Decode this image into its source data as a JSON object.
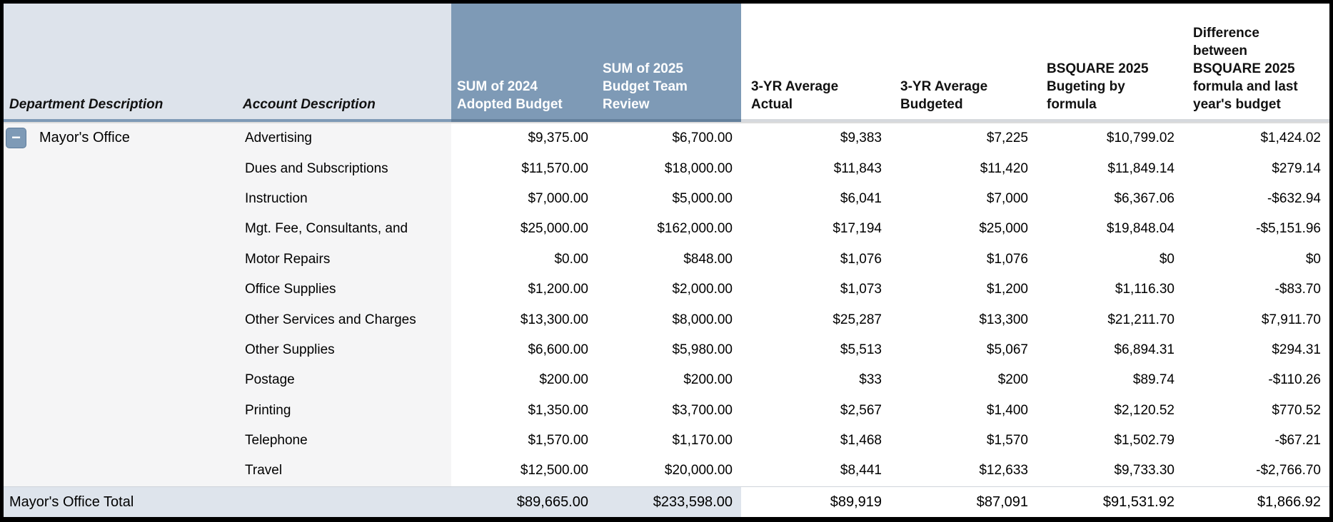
{
  "table": {
    "columns": [
      {
        "label": "Department Description"
      },
      {
        "label": "Account Description"
      },
      {
        "label": "SUM of 2024\nAdopted Budget"
      },
      {
        "label": "SUM of 2025\nBudget Team\nReview"
      },
      {
        "label": "3-YR Average\nActual"
      },
      {
        "label": "3-YR Average\nBudgeted"
      },
      {
        "label": "BSQUARE 2025\nBugeting by\nformula"
      },
      {
        "label": "Difference\nbetween\nBSQUARE 2025\nformula and last\nyear's budget"
      }
    ],
    "group": {
      "department": "Mayor's Office",
      "collapse_icon": "collapse-minus-icon",
      "collapse_glyph": "−"
    },
    "rows": [
      {
        "account": "Advertising",
        "sum_2024": "$9,375.00",
        "sum_2025": "$6,700.00",
        "avg_actual_3yr": "$9,383",
        "avg_budgeted_3yr": "$7,225",
        "bsquare_2025": "$10,799.02",
        "difference": "$1,424.02"
      },
      {
        "account": "Dues and Subscriptions",
        "sum_2024": "$11,570.00",
        "sum_2025": "$18,000.00",
        "avg_actual_3yr": "$11,843",
        "avg_budgeted_3yr": "$11,420",
        "bsquare_2025": "$11,849.14",
        "difference": "$279.14"
      },
      {
        "account": "Instruction",
        "sum_2024": "$7,000.00",
        "sum_2025": "$5,000.00",
        "avg_actual_3yr": "$6,041",
        "avg_budgeted_3yr": "$7,000",
        "bsquare_2025": "$6,367.06",
        "difference": "-$632.94"
      },
      {
        "account": "Mgt. Fee, Consultants, and",
        "sum_2024": "$25,000.00",
        "sum_2025": "$162,000.00",
        "avg_actual_3yr": "$17,194",
        "avg_budgeted_3yr": "$25,000",
        "bsquare_2025": "$19,848.04",
        "difference": "-$5,151.96"
      },
      {
        "account": "Motor Repairs",
        "sum_2024": "$0.00",
        "sum_2025": "$848.00",
        "avg_actual_3yr": "$1,076",
        "avg_budgeted_3yr": "$1,076",
        "bsquare_2025": "$0",
        "difference": "$0"
      },
      {
        "account": "Office Supplies",
        "sum_2024": "$1,200.00",
        "sum_2025": "$2,000.00",
        "avg_actual_3yr": "$1,073",
        "avg_budgeted_3yr": "$1,200",
        "bsquare_2025": "$1,116.30",
        "difference": "-$83.70"
      },
      {
        "account": "Other Services and Charges",
        "sum_2024": "$13,300.00",
        "sum_2025": "$8,000.00",
        "avg_actual_3yr": "$25,287",
        "avg_budgeted_3yr": "$13,300",
        "bsquare_2025": "$21,211.70",
        "difference": "$7,911.70"
      },
      {
        "account": "Other Supplies",
        "sum_2024": "$6,600.00",
        "sum_2025": "$5,980.00",
        "avg_actual_3yr": "$5,513",
        "avg_budgeted_3yr": "$5,067",
        "bsquare_2025": "$6,894.31",
        "difference": "$294.31"
      },
      {
        "account": "Postage",
        "sum_2024": "$200.00",
        "sum_2025": "$200.00",
        "avg_actual_3yr": "$33",
        "avg_budgeted_3yr": "$200",
        "bsquare_2025": "$89.74",
        "difference": "-$110.26"
      },
      {
        "account": "Printing",
        "sum_2024": "$1,350.00",
        "sum_2025": "$3,700.00",
        "avg_actual_3yr": "$2,567",
        "avg_budgeted_3yr": "$1,400",
        "bsquare_2025": "$2,120.52",
        "difference": "$770.52"
      },
      {
        "account": "Telephone",
        "sum_2024": "$1,570.00",
        "sum_2025": "$1,170.00",
        "avg_actual_3yr": "$1,468",
        "avg_budgeted_3yr": "$1,570",
        "bsquare_2025": "$1,502.79",
        "difference": "-$67.21"
      },
      {
        "account": "Travel",
        "sum_2024": "$12,500.00",
        "sum_2025": "$20,000.00",
        "avg_actual_3yr": "$8,441",
        "avg_budgeted_3yr": "$12,633",
        "bsquare_2025": "$9,733.30",
        "difference": "-$2,766.70"
      }
    ],
    "total": {
      "label": "Mayor's Office Total",
      "sum_2024": "$89,665.00",
      "sum_2025": "$233,598.00",
      "avg_actual_3yr": "$89,919",
      "avg_budgeted_3yr": "$87,091",
      "bsquare_2025": "$91,531.92",
      "difference": "$1,866.92"
    }
  },
  "colors": {
    "header_dark": "#7e9ab6",
    "header_light": "#dde3eb",
    "row_label_bg": "#f5f5f6",
    "total_row_bg": "#dee4ec",
    "frame_border": "#000000"
  }
}
